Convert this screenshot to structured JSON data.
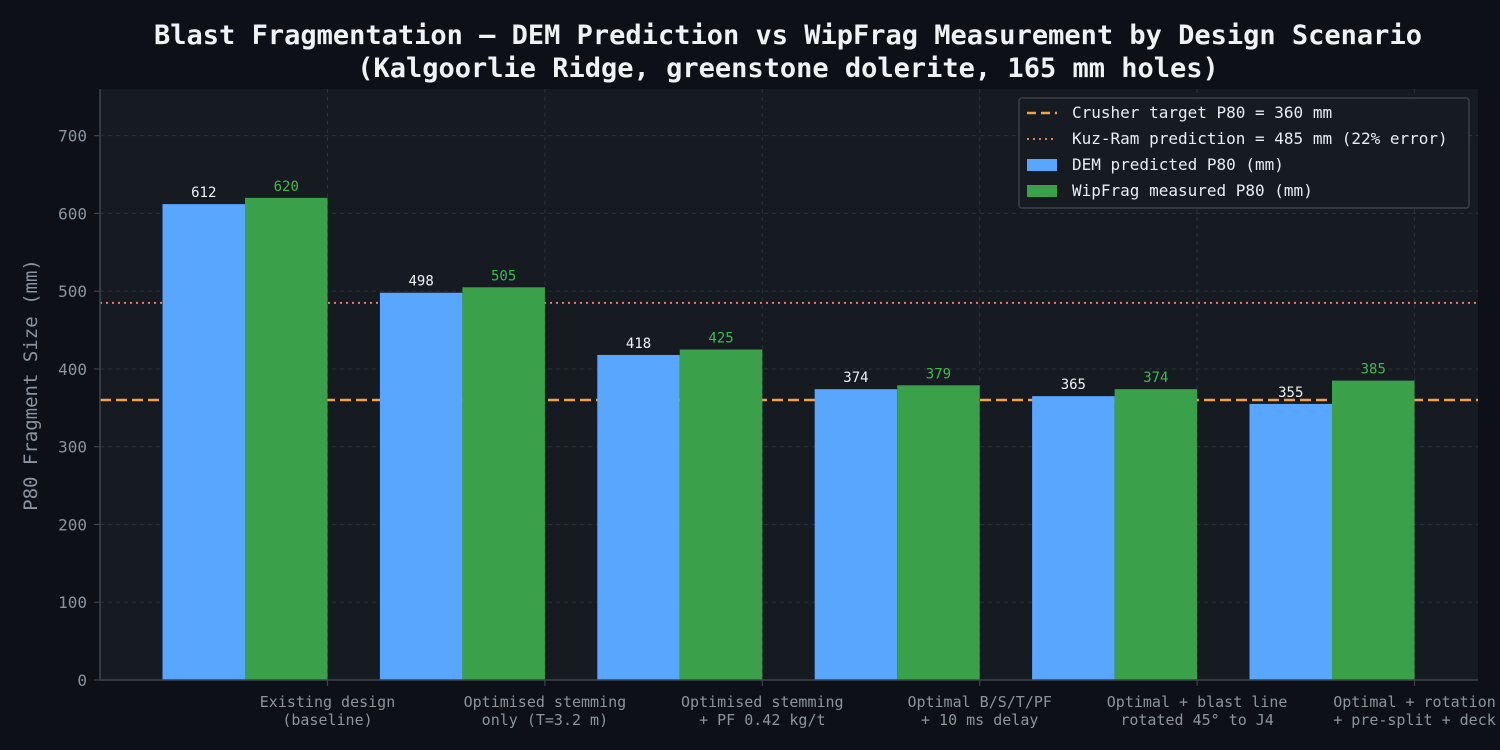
{
  "chart_data": {
    "type": "bar",
    "title_line1": "Blast Fragmentation — DEM Prediction vs WipFrag Measurement by Design Scenario",
    "title_line2": "(Kalgoorlie Ridge, greenstone dolerite, 165 mm holes)",
    "xlabel": "",
    "ylabel": "P80 Fragment Size (mm)",
    "ylim": [
      0,
      760
    ],
    "yticks": [
      0,
      100,
      200,
      300,
      400,
      500,
      600,
      700
    ],
    "grid": true,
    "legend_position": "top-right",
    "categories": [
      [
        "Existing design",
        "(baseline)"
      ],
      [
        "Optimised stemming",
        "only (T=3.2 m)"
      ],
      [
        "Optimised stemming",
        "+ PF 0.42 kg/t"
      ],
      [
        "Optimal B/S/T/PF",
        "+ 10 ms delay"
      ],
      [
        "Optimal + blast line",
        "rotated 45° to J4"
      ],
      [
        "Optimal + rotation",
        "+ pre-split + deck"
      ]
    ],
    "series": [
      {
        "name": "DEM predicted P80 (mm)",
        "values": [
          612,
          498,
          418,
          374,
          365,
          355
        ],
        "color": "#58a6ff",
        "label_color": "#f0f3f6"
      },
      {
        "name": "WipFrag measured P80 (mm)",
        "values": [
          620,
          505,
          425,
          379,
          374,
          385
        ],
        "color": "#3aa14a",
        "label_color": "#3fb950"
      }
    ],
    "reference_lines": [
      {
        "name": "Crusher target P80 = 360 mm",
        "value": 360,
        "style": "dashed",
        "color": "#f0a14a"
      },
      {
        "name": "Kuz-Ram prediction = 485 mm (22% error)",
        "value": 485,
        "style": "dotted",
        "color": "#e0806a"
      }
    ]
  },
  "colors": {
    "page_background": "#0d1117",
    "plot_background": "#161b22",
    "grid": "#2a313a",
    "axis": "#3d444d"
  }
}
